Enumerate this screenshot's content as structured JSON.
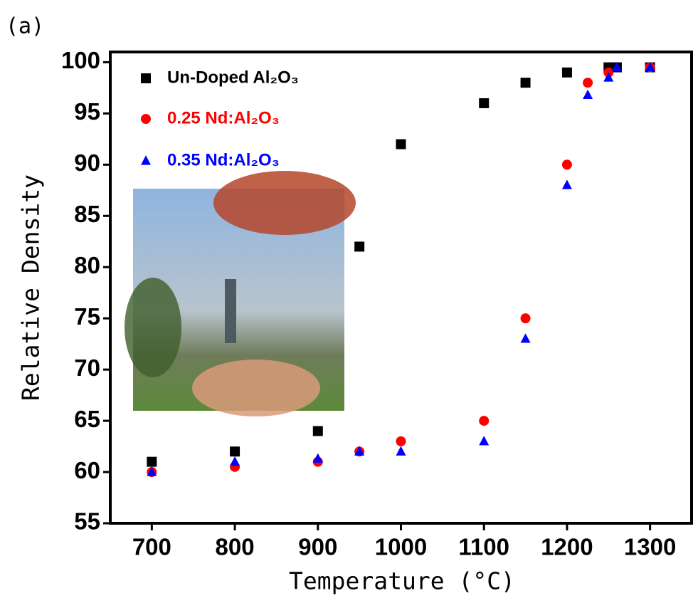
{
  "chart_data": {
    "type": "scatter",
    "panel_label": "(a)",
    "x_label": "Temperature (°C)",
    "y_label": "Relative Density",
    "xlim": [
      650,
      1350
    ],
    "ylim": [
      55,
      101
    ],
    "xticks": [
      700,
      800,
      900,
      1000,
      1100,
      1200,
      1300
    ],
    "yticks": [
      55,
      60,
      65,
      70,
      75,
      80,
      85,
      90,
      95,
      100
    ],
    "legend": "upper left",
    "series": [
      {
        "name": "Un-Doped Al₂O₃",
        "color": "#000000",
        "marker": "square",
        "x": [
          700,
          800,
          900,
          950,
          1000,
          1100,
          1150,
          1200,
          1250,
          1260,
          1300
        ],
        "values": [
          61,
          62,
          64,
          82,
          92,
          96,
          98,
          99,
          99.5,
          99.5,
          99.5
        ]
      },
      {
        "name": "0.25 Nd:Al₂O₃",
        "color": "#ff0000",
        "marker": "circle",
        "x": [
          700,
          800,
          900,
          950,
          1000,
          1100,
          1150,
          1200,
          1225,
          1250,
          1300
        ],
        "values": [
          60,
          60.5,
          61,
          62,
          63,
          65,
          75,
          90,
          98,
          99,
          99.5
        ]
      },
      {
        "name": "0.35 Nd:Al₂O₃",
        "color": "#0000ff",
        "marker": "triangle",
        "x": [
          700,
          800,
          900,
          950,
          1000,
          1100,
          1150,
          1200,
          1225,
          1250,
          1260,
          1300
        ],
        "values": [
          60,
          61,
          61.3,
          62,
          62,
          63,
          73,
          88,
          96.8,
          98.5,
          99.5,
          99.5
        ]
      }
    ]
  }
}
